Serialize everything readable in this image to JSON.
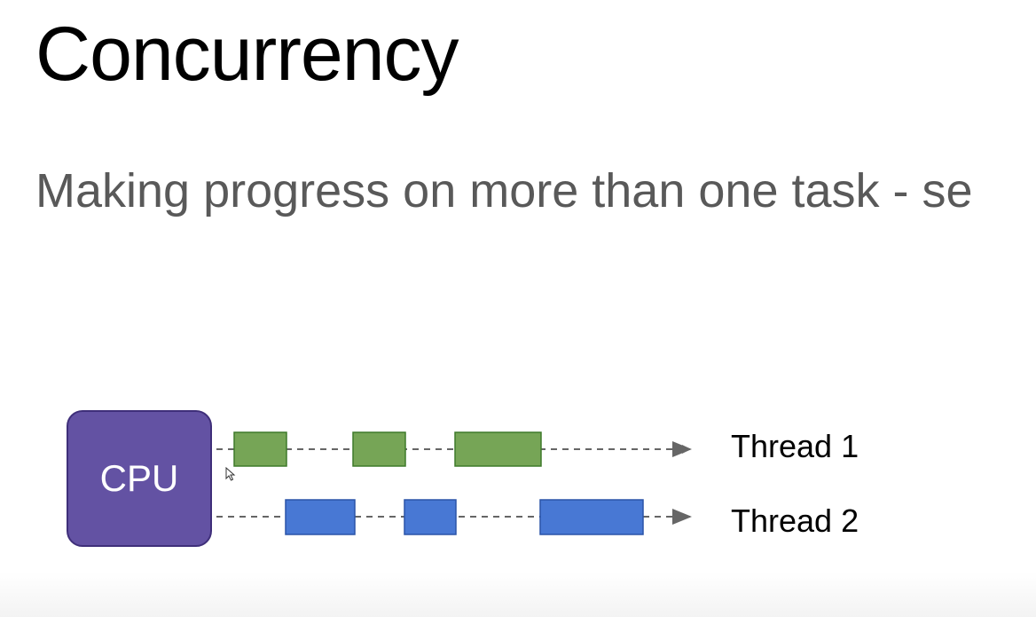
{
  "slide": {
    "title": "Concurrency",
    "subtitle": "Making progress on more than one task - se"
  },
  "diagram": {
    "cpu_label": "CPU",
    "threads": [
      {
        "label": "Thread 1",
        "color": "#76a556",
        "border": "#3f7a2a"
      },
      {
        "label": "Thread 2",
        "color": "#4878d4",
        "border": "#2a54a8"
      }
    ],
    "line_color": "#666666",
    "cpu_color": "#6352a3"
  },
  "icons": {
    "cursor": "mouse-pointer-icon"
  }
}
